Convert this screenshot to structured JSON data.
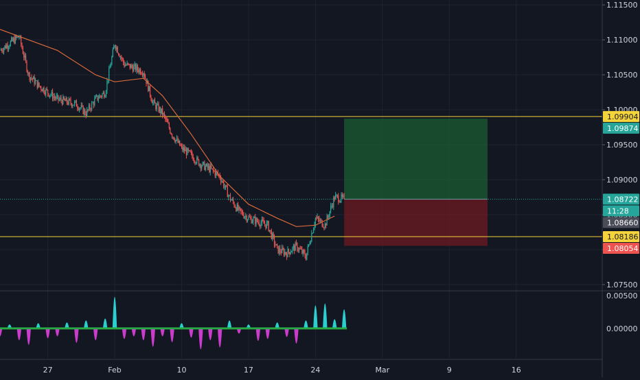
{
  "colors": {
    "background": "#131722",
    "grid": "#1f2330",
    "axis_text": "#d1d4dc",
    "up": "#26a69a",
    "down": "#ef5350",
    "ema": "#d86a3a",
    "hline": "#f5d33a",
    "target_zone": "#1b5e33",
    "stop_zone": "#6e1a22",
    "last_price": "#26a69a",
    "osc_positive": "#2fe3e3",
    "osc_negative": "#e040e0",
    "osc_baseline": "#28a745"
  },
  "chart_data": [
    {
      "type": "line",
      "ylim": [
        1.0745,
        1.1157
      ],
      "yticks": [
        "1.07500",
        "1.08000",
        "1.08500",
        "1.09000",
        "1.09500",
        "1.10000",
        "1.10500",
        "1.11000",
        "1.11500"
      ],
      "ytick_values": [
        1.075,
        1.08,
        1.085,
        1.09,
        1.095,
        1.1,
        1.105,
        1.11,
        1.115
      ],
      "xticks": [
        "27",
        "Feb",
        "10",
        "17",
        "24",
        "Mar",
        "9",
        "16"
      ],
      "xtick_values": [
        "2020-01-27",
        "2020-02-03",
        "2020-02-10",
        "2020-02-17",
        "2020-02-24",
        "2020-03-02",
        "2020-03-09",
        "2020-03-16"
      ],
      "xlim": [
        "2020-01-22",
        "2020-03-25"
      ],
      "price_path": {
        "x": [
          "2020-01-22",
          "2020-01-24",
          "2020-01-25",
          "2020-01-26",
          "2020-01-28",
          "2020-01-30",
          "2020-01-31",
          "2020-02-01",
          "2020-02-02",
          "2020-02-03",
          "2020-02-04",
          "2020-02-06",
          "2020-02-07",
          "2020-02-08",
          "2020-02-09",
          "2020-02-10",
          "2020-02-11",
          "2020-02-12",
          "2020-02-13",
          "2020-02-14",
          "2020-02-15",
          "2020-02-16",
          "2020-02-17",
          "2020-02-18",
          "2020-02-19",
          "2020-02-20",
          "2020-02-21",
          "2020-02-22",
          "2020-02-23",
          "2020-02-24",
          "2020-02-25",
          "2020-02-26",
          "2020-02-27"
        ],
        "y": [
          1.1085,
          1.1105,
          1.105,
          1.1035,
          1.1015,
          1.1008,
          1.0995,
          1.1015,
          1.1025,
          1.1095,
          1.1065,
          1.1055,
          1.101,
          1.0995,
          1.0965,
          1.0945,
          1.0935,
          1.0922,
          1.0915,
          1.0905,
          1.0875,
          1.0855,
          1.0845,
          1.084,
          1.0835,
          1.08,
          1.0795,
          1.0805,
          1.079,
          1.0845,
          1.0835,
          1.0875,
          1.0872
        ]
      },
      "ema": {
        "x": [
          "2020-01-22",
          "2020-01-28",
          "2020-02-01",
          "2020-02-03",
          "2020-02-06",
          "2020-02-08",
          "2020-02-11",
          "2020-02-14",
          "2020-02-17",
          "2020-02-20",
          "2020-02-22",
          "2020-02-24",
          "2020-02-26"
        ],
        "y": [
          1.1115,
          1.1085,
          1.105,
          1.104,
          1.1045,
          1.102,
          1.0965,
          1.0905,
          1.0865,
          1.0845,
          1.0833,
          1.0835,
          1.0848
        ]
      },
      "horizontal_lines": [
        1.09904,
        1.08186
      ],
      "position": {
        "entry": 1.08722,
        "target": 1.09874,
        "stop": 1.08054,
        "x_start": "2020-02-27",
        "x_end": "2020-03-13"
      },
      "price_labels": [
        {
          "text": "1.09904",
          "kind": "hline"
        },
        {
          "text": "1.09874",
          "kind": "target"
        },
        {
          "text": "1.08722",
          "kind": "last"
        },
        {
          "text": "11:28",
          "kind": "countdown"
        },
        {
          "text": "1.08660",
          "kind": "ema"
        },
        {
          "text": "1.08186",
          "kind": "hline"
        },
        {
          "text": "1.08054",
          "kind": "stop"
        }
      ],
      "price_label_values": [
        1.09904,
        1.09874,
        1.08722,
        1.0869,
        1.0866,
        1.08186,
        1.08054
      ]
    },
    {
      "type": "area",
      "ylim": [
        -0.0045,
        0.0055
      ],
      "yticks": [
        "0.00500",
        "0.00000"
      ],
      "ytick_values": [
        0.005,
        0.0
      ],
      "x": [
        "2020-01-22",
        "2020-01-23",
        "2020-01-24",
        "2020-01-25",
        "2020-01-26",
        "2020-01-27",
        "2020-01-28",
        "2020-01-29",
        "2020-01-30",
        "2020-01-31",
        "2020-02-01",
        "2020-02-02",
        "2020-02-03",
        "2020-02-04",
        "2020-02-05",
        "2020-02-06",
        "2020-02-07",
        "2020-02-08",
        "2020-02-09",
        "2020-02-10",
        "2020-02-11",
        "2020-02-12",
        "2020-02-13",
        "2020-02-14",
        "2020-02-15",
        "2020-02-16",
        "2020-02-17",
        "2020-02-18",
        "2020-02-19",
        "2020-02-20",
        "2020-02-21",
        "2020-02-22",
        "2020-02-23",
        "2020-02-24",
        "2020-02-25",
        "2020-02-26",
        "2020-02-27"
      ],
      "values": [
        -0.0012,
        0.0006,
        -0.0018,
        -0.0025,
        0.0008,
        -0.0015,
        -0.0012,
        0.0009,
        -0.0022,
        0.0012,
        -0.0018,
        0.0015,
        0.0048,
        -0.0016,
        -0.0012,
        -0.0018,
        -0.0028,
        -0.0012,
        -0.0021,
        0.0008,
        -0.0014,
        -0.0032,
        -0.0018,
        -0.0029,
        0.0012,
        -0.0008,
        0.0006,
        -0.0019,
        -0.0016,
        0.0009,
        -0.0013,
        -0.0023,
        0.0012,
        0.0035,
        0.0038,
        0.0014,
        0.0029
      ]
    }
  ]
}
